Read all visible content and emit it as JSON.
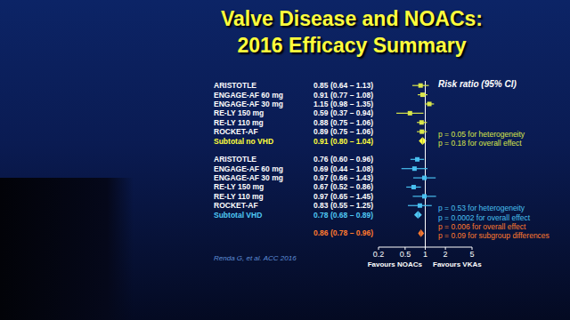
{
  "chart_data": {
    "type": "forest",
    "title": "Valve Disease and NOACs:",
    "subtitle": "2016 Efficacy Summary",
    "column_label": "Risk ratio (95% CI)",
    "log": "x",
    "xlim": [
      0.2,
      5
    ],
    "xticks": [
      0.2,
      0.5,
      1,
      2,
      5
    ],
    "x_side_labels": [
      "Favours NOACs",
      "Favours VKAs"
    ],
    "source": "Renda G, et al. ACC 2016",
    "groups": [
      {
        "color": "#d9e64a",
        "marker": "square",
        "rows": [
          {
            "label": "ARISTOTLE",
            "value": 0.85,
            "lower": 0.64,
            "upper": 1.13,
            "value_label": "0.85 (0.64 – 1.13)"
          },
          {
            "label": "ENGAGE-AF 60 mg",
            "value": 0.91,
            "lower": 0.77,
            "upper": 1.08,
            "value_label": "0.91 (0.77 – 1.08)"
          },
          {
            "label": "ENGAGE-AF 30 mg",
            "value": 1.15,
            "lower": 0.98,
            "upper": 1.35,
            "value_label": "1.15 (0.98 – 1.35)"
          },
          {
            "label": "RE-LY 150 mg",
            "value": 0.59,
            "lower": 0.37,
            "upper": 0.94,
            "value_label": "0.59 (0.37 – 0.94)"
          },
          {
            "label": "RE-LY 110 mg",
            "value": 0.88,
            "lower": 0.75,
            "upper": 1.06,
            "value_label": "0.88 (0.75 – 1.06)"
          },
          {
            "label": "ROCKET-AF",
            "value": 0.89,
            "lower": 0.75,
            "upper": 1.06,
            "value_label": "0.89 (0.75 – 1.06)"
          }
        ],
        "subtotal": {
          "label": "Subtotal no VHD",
          "value": 0.91,
          "lower": 0.8,
          "upper": 1.04,
          "value_label": "0.91 (0.80 – 1.04)",
          "marker": "diamond",
          "color": "#ffff3c"
        },
        "notes": [
          "p = 0.05 for heterogeneity",
          "p = 0.18 for overall effect"
        ]
      },
      {
        "color": "#49c0f0",
        "marker": "square",
        "rows": [
          {
            "label": "ARISTOTLE",
            "value": 0.76,
            "lower": 0.6,
            "upper": 0.96,
            "value_label": "0.76 (0.60 – 0.96)"
          },
          {
            "label": "ENGAGE-AF 60 mg",
            "value": 0.69,
            "lower": 0.44,
            "upper": 1.08,
            "value_label": "0.69 (0.44 – 1.08)"
          },
          {
            "label": "ENGAGE-AF 30 mg",
            "value": 0.97,
            "lower": 0.66,
            "upper": 1.43,
            "value_label": "0.97 (0.66 – 1.43)"
          },
          {
            "label": "RE-LY 150 mg",
            "value": 0.67,
            "lower": 0.52,
            "upper": 0.86,
            "value_label": "0.67 (0.52 – 0.86)"
          },
          {
            "label": "RE-LY 110 mg",
            "value": 0.97,
            "lower": 0.65,
            "upper": 1.45,
            "value_label": "0.97 (0.65 – 1.45)"
          },
          {
            "label": "ROCKET-AF",
            "value": 0.83,
            "lower": 0.55,
            "upper": 1.25,
            "value_label": "0.83 (0.55 – 1.25)"
          }
        ],
        "subtotal": {
          "label": "Subtotal VHD",
          "value": 0.78,
          "lower": 0.68,
          "upper": 0.89,
          "value_label": "0.78 (0.68 – 0.89)",
          "marker": "diamond",
          "color": "#4fc8f4"
        },
        "notes": [
          "p = 0.53 for heterogeneity",
          "p = 0.0002 for overall effect"
        ]
      }
    ],
    "overall": {
      "value": 0.86,
      "lower": 0.78,
      "upper": 0.96,
      "value_label": "0.86 (0.78 – 0.96)",
      "marker": "diamond",
      "color": "#ff7a2e",
      "notes": [
        "p = 0.006 for overall effect",
        "p = 0.09 for subgroup differences"
      ]
    }
  }
}
